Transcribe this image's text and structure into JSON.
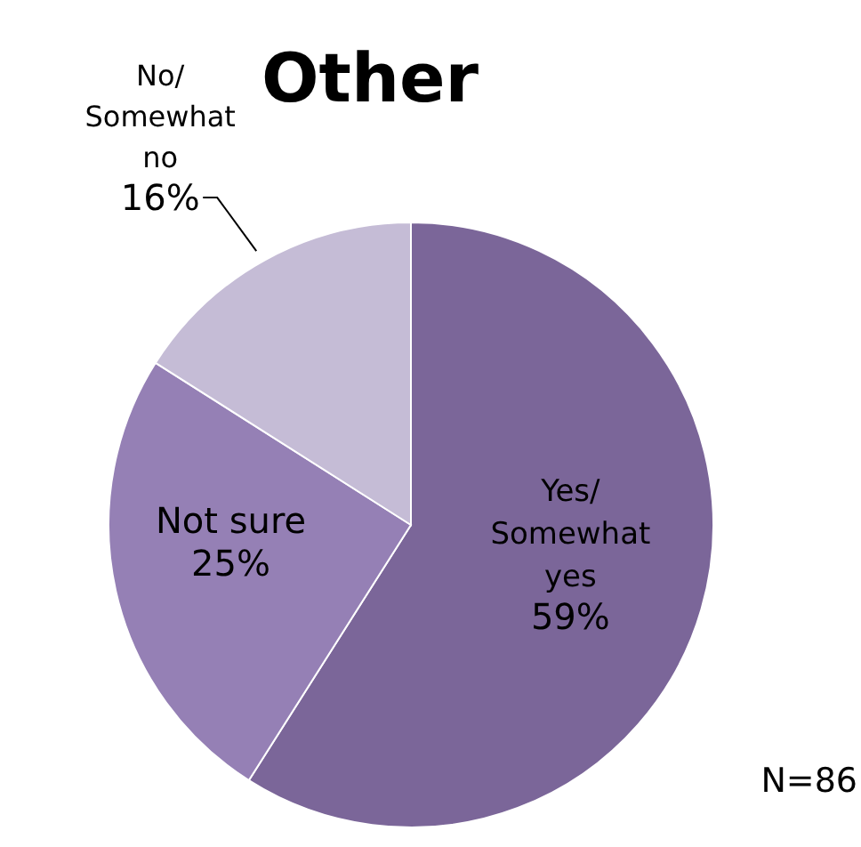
{
  "chart_data": {
    "type": "pie",
    "title": "Other",
    "categories": [
      "Yes/ Somewhat yes",
      "Not sure",
      "No/ Somewhat no"
    ],
    "values": [
      59,
      25,
      16
    ],
    "colors": [
      "#7b6699",
      "#9580b5",
      "#c5bcd6"
    ],
    "value_labels": [
      "59%",
      "25%",
      "16%"
    ],
    "annotations": [
      "N=86"
    ]
  }
}
